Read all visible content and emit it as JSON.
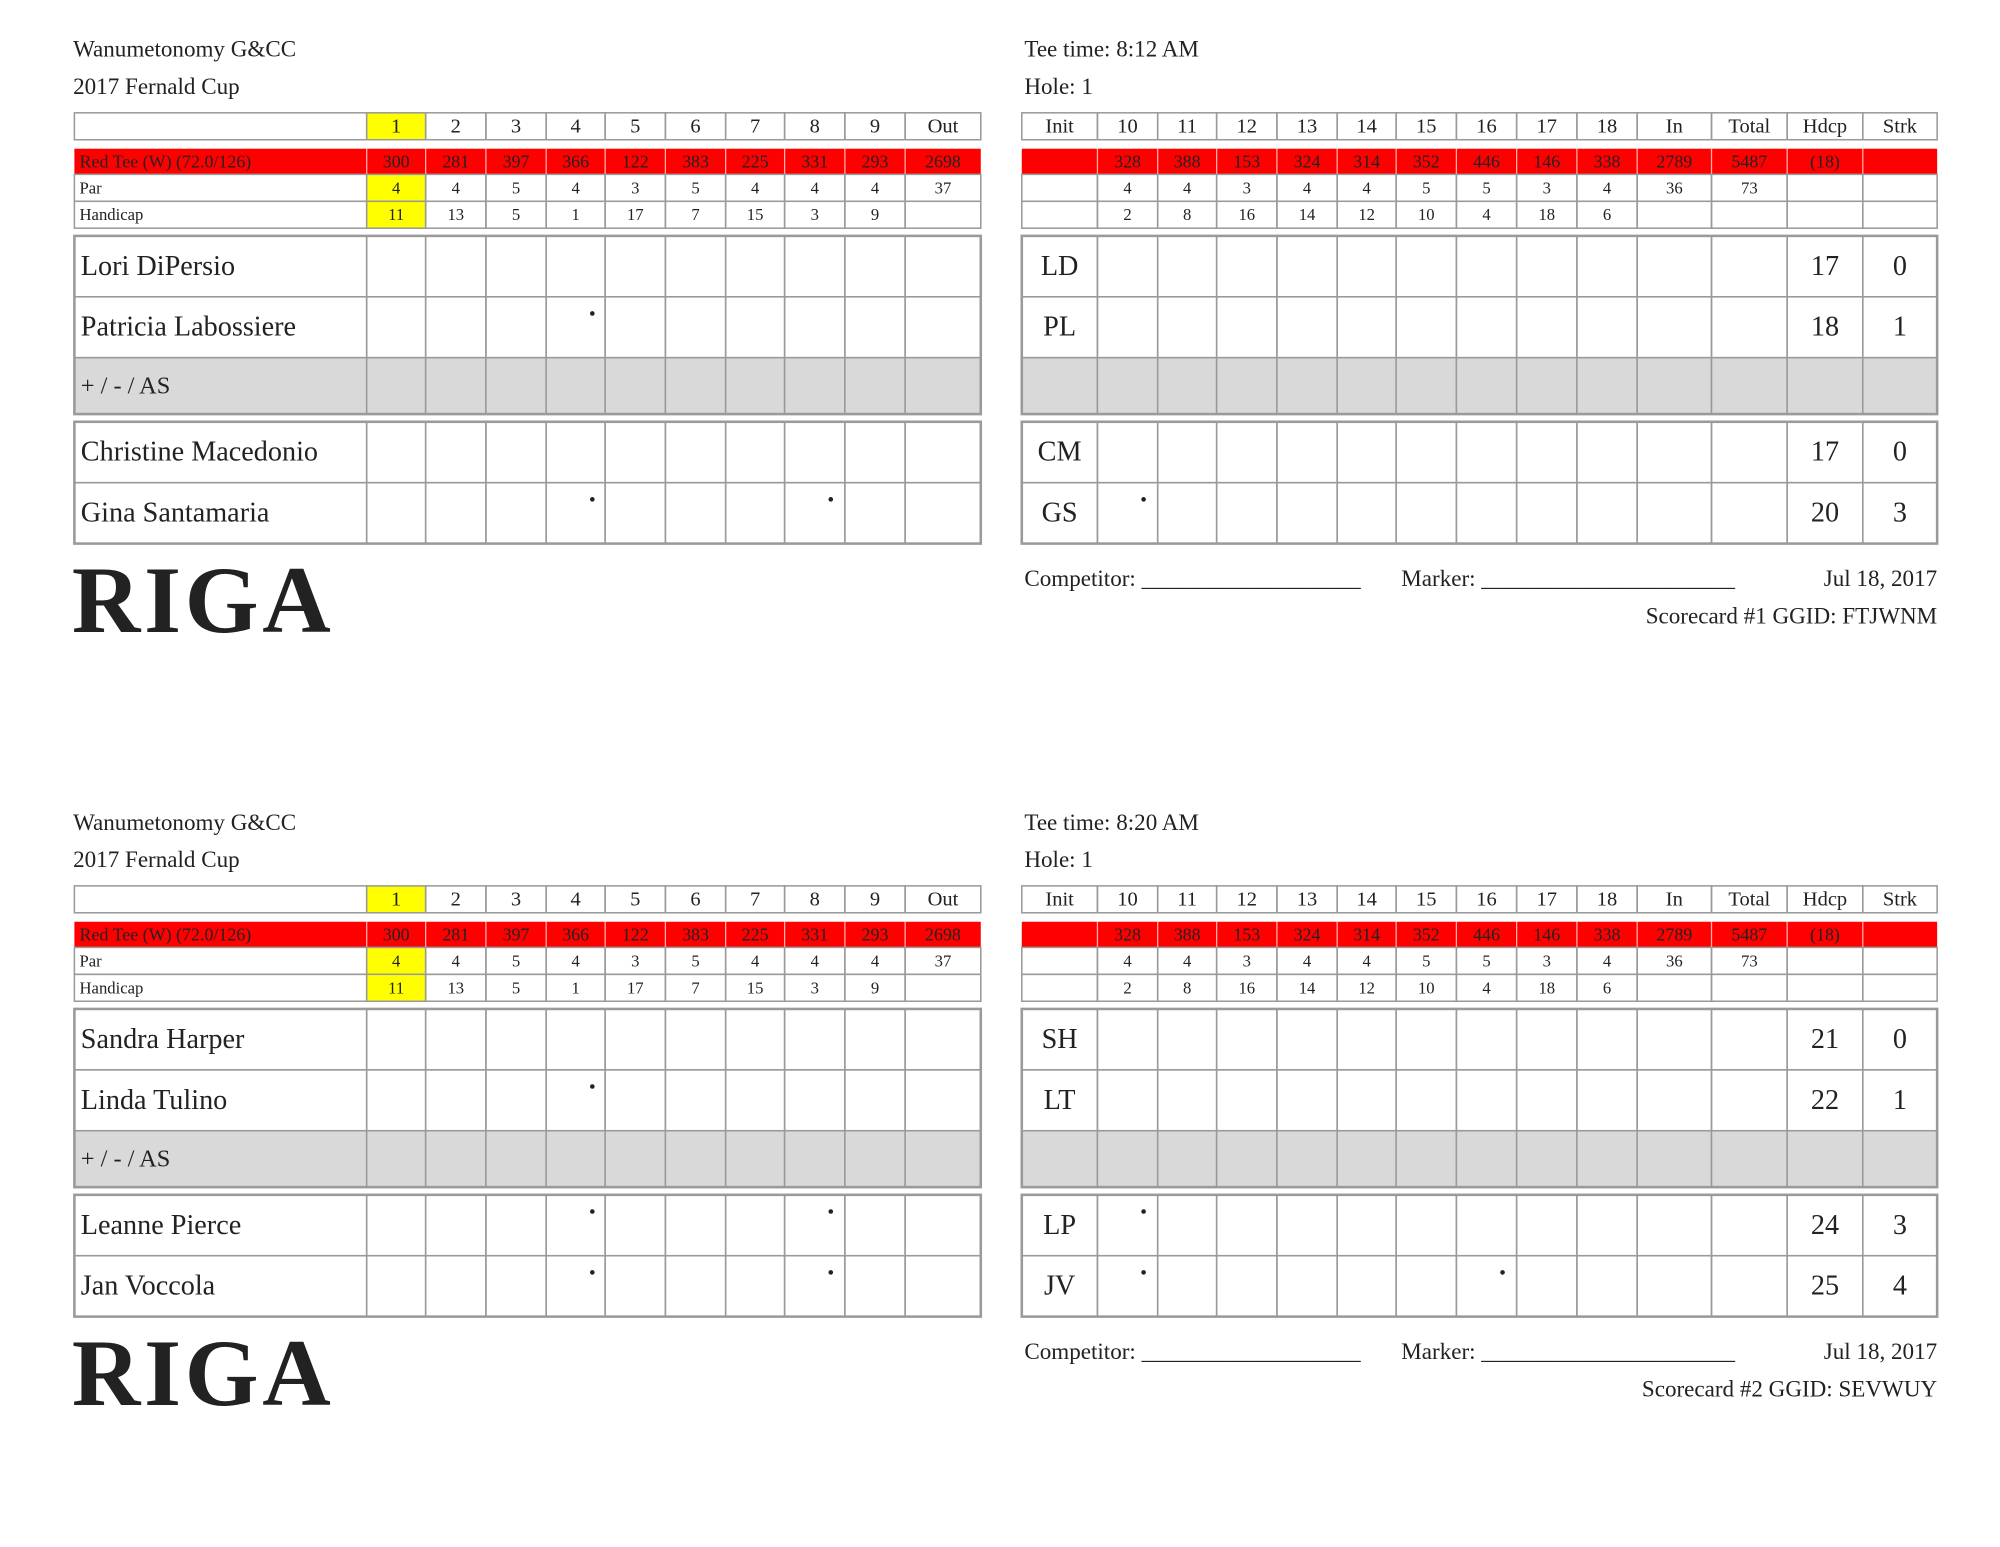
{
  "cards": [
    {
      "club": "Wanumetonomy G&CC",
      "event": "2017 Fernald Cup",
      "tee_time": "Tee time: 8:12 AM",
      "hole": "Hole: 1",
      "front_header": [
        "1",
        "2",
        "3",
        "4",
        "5",
        "6",
        "7",
        "8",
        "9",
        "Out"
      ],
      "back_header": [
        "Init",
        "10",
        "11",
        "12",
        "13",
        "14",
        "15",
        "16",
        "17",
        "18",
        "In",
        "Total",
        "Hdcp",
        "Strk"
      ],
      "tee": {
        "name": "Red Tee (W) (72.0/126)",
        "front": [
          300,
          281,
          397,
          366,
          122,
          383,
          225,
          331,
          293,
          2698
        ],
        "back": [
          328,
          388,
          153,
          324,
          314,
          352,
          446,
          146,
          338,
          2789,
          5487
        ],
        "hdcp": "(18)"
      },
      "par": {
        "label": "Par",
        "front": [
          4,
          4,
          5,
          4,
          3,
          5,
          4,
          4,
          4,
          37
        ],
        "back": [
          4,
          4,
          3,
          4,
          4,
          5,
          5,
          3,
          4,
          36,
          73
        ]
      },
      "handicap": {
        "label": "Handicap",
        "front": [
          11,
          13,
          5,
          1,
          17,
          7,
          15,
          3,
          9
        ],
        "back": [
          2,
          8,
          16,
          14,
          12,
          10,
          4,
          18,
          6
        ]
      },
      "groups": [
        {
          "players": [
            {
              "name": "Lori DiPersio",
              "init": "LD",
              "hdcp": 17,
              "strk": 0
            },
            {
              "name": "Patricia Labossiere",
              "init": "PL",
              "hdcp": 18,
              "strk": 1
            }
          ],
          "net_label": "+ / - / AS"
        },
        {
          "players": [
            {
              "name": "Christine Macedonio",
              "init": "CM",
              "hdcp": 17,
              "strk": 0
            },
            {
              "name": "Gina Santamaria",
              "init": "GS",
              "hdcp": 20,
              "strk": 3
            }
          ]
        }
      ],
      "competitor": "Competitor: ___________________",
      "marker": "Marker: ______________________",
      "date": "Jul 18, 2017",
      "footer": "Scorecard #1  GGID: FTJWNM",
      "logo": "RIGA"
    },
    {
      "club": "Wanumetonomy G&CC",
      "event": "2017 Fernald Cup",
      "tee_time": "Tee time: 8:20 AM",
      "hole": "Hole: 1",
      "front_header": [
        "1",
        "2",
        "3",
        "4",
        "5",
        "6",
        "7",
        "8",
        "9",
        "Out"
      ],
      "back_header": [
        "Init",
        "10",
        "11",
        "12",
        "13",
        "14",
        "15",
        "16",
        "17",
        "18",
        "In",
        "Total",
        "Hdcp",
        "Strk"
      ],
      "tee": {
        "name": "Red Tee (W) (72.0/126)",
        "front": [
          300,
          281,
          397,
          366,
          122,
          383,
          225,
          331,
          293,
          2698
        ],
        "back": [
          328,
          388,
          153,
          324,
          314,
          352,
          446,
          146,
          338,
          2789,
          5487
        ],
        "hdcp": "(18)"
      },
      "par": {
        "label": "Par",
        "front": [
          4,
          4,
          5,
          4,
          3,
          5,
          4,
          4,
          4,
          37
        ],
        "back": [
          4,
          4,
          3,
          4,
          4,
          5,
          5,
          3,
          4,
          36,
          73
        ]
      },
      "handicap": {
        "label": "Handicap",
        "front": [
          11,
          13,
          5,
          1,
          17,
          7,
          15,
          3,
          9
        ],
        "back": [
          2,
          8,
          16,
          14,
          12,
          10,
          4,
          18,
          6
        ]
      },
      "groups": [
        {
          "players": [
            {
              "name": "Sandra Harper",
              "init": "SH",
              "hdcp": 21,
              "strk": 0
            },
            {
              "name": "Linda Tulino",
              "init": "LT",
              "hdcp": 22,
              "strk": 1
            }
          ],
          "net_label": "+ / - / AS"
        },
        {
          "players": [
            {
              "name": "Leanne Pierce",
              "init": "LP",
              "hdcp": 24,
              "strk": 3
            },
            {
              "name": "Jan Voccola",
              "init": "JV",
              "hdcp": 25,
              "strk": 4
            }
          ]
        }
      ],
      "competitor": "Competitor: ___________________",
      "marker": "Marker: ______________________",
      "date": "Jul 18, 2017",
      "footer": "Scorecard #2  GGID: SEVWUY",
      "logo": "RIGA"
    }
  ]
}
